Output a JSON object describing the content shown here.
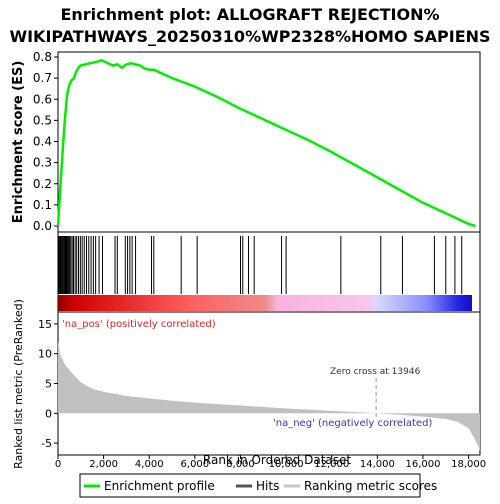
{
  "chart_data": {
    "type": "line",
    "title_line1": "Enrichment plot: ALLOGRAFT REJECTION%",
    "title_line2": "WIKIPATHWAYS_20250310%WP2328%HOMO SAPIENS",
    "es_panel": {
      "ylabel": "Enrichment score (ES)",
      "ylim": [
        0.0,
        0.8
      ],
      "yticks": [
        "0.0",
        "0.1",
        "0.2",
        "0.3",
        "0.4",
        "0.5",
        "0.6",
        "0.7",
        "0.8"
      ],
      "line_color": "#00ee00",
      "series": {
        "name": "Enrichment profile",
        "x": [
          0,
          100,
          200,
          300,
          400,
          500,
          600,
          700,
          800,
          900,
          1000,
          1200,
          1400,
          1600,
          1800,
          1900,
          2000,
          2200,
          2400,
          2600,
          2800,
          3000,
          3200,
          3400,
          3600,
          3800,
          4000,
          4200,
          5000,
          6000,
          7000,
          8000,
          8500,
          9000,
          10000,
          11000,
          12000,
          13000,
          14000,
          15000,
          16000,
          17000,
          17500,
          18000,
          18300
        ],
        "y": [
          0.0,
          0.18,
          0.35,
          0.5,
          0.62,
          0.67,
          0.69,
          0.7,
          0.73,
          0.75,
          0.76,
          0.765,
          0.77,
          0.775,
          0.78,
          0.785,
          0.78,
          0.77,
          0.76,
          0.765,
          0.75,
          0.765,
          0.77,
          0.765,
          0.76,
          0.745,
          0.74,
          0.74,
          0.7,
          0.66,
          0.61,
          0.555,
          0.53,
          0.505,
          0.455,
          0.405,
          0.35,
          0.29,
          0.23,
          0.17,
          0.11,
          0.06,
          0.035,
          0.01,
          0.0
        ]
      }
    },
    "hits_panel": {
      "positions": [
        30,
        70,
        110,
        150,
        190,
        230,
        270,
        310,
        350,
        390,
        430,
        470,
        510,
        560,
        620,
        680,
        750,
        820,
        900,
        980,
        1060,
        1150,
        1250,
        1350,
        1450,
        1550,
        1650,
        1800,
        1950,
        2500,
        2600,
        2950,
        3050,
        3150,
        3250,
        3400,
        4100,
        4200,
        5400,
        6100,
        8000,
        8100,
        8350,
        8600,
        9800,
        10000,
        12400,
        14150,
        15100,
        16500,
        17000,
        17400,
        17700
      ]
    },
    "ranked_panel": {
      "ylabel": "Ranked list metric (PreRanked)",
      "ylim": [
        -7,
        17
      ],
      "yticks": [
        "-5",
        "0",
        "5",
        "10",
        "15"
      ],
      "fill_color": "#c0c0c0",
      "metric_profile": {
        "x": [
          0,
          100,
          300,
          600,
          1000,
          1500,
          2000,
          3000,
          4000,
          5000,
          6000,
          8000,
          10000,
          12000,
          13946,
          15000,
          16000,
          17000,
          17500,
          18000,
          18300,
          18500
        ],
        "y": [
          12,
          9.8,
          8.2,
          6.8,
          5.2,
          4.1,
          3.6,
          2.9,
          2.5,
          2.1,
          1.8,
          1.3,
          0.8,
          0.4,
          0.0,
          -0.25,
          -0.55,
          -0.95,
          -1.4,
          -2.5,
          -4.5,
          -6.2
        ]
      },
      "pos_label": "'na_pos' (positively correlated)",
      "neg_label": "'na_neg' (negatively correlated)",
      "zero_cross_label": "Zero cross at 13946",
      "zero_cross": 13946
    },
    "xaxis": {
      "label": "Rank in Ordered Dataset",
      "xlim": [
        0,
        18500
      ],
      "ticks": [
        0,
        2000,
        4000,
        6000,
        8000,
        10000,
        12000,
        14000,
        16000,
        18000
      ],
      "tick_labels": [
        "0",
        "2,000",
        "4,000",
        "6,000",
        "8,000",
        "10,000",
        "12,000",
        "14,000",
        "16,000",
        "18,000"
      ]
    },
    "legend": {
      "placement": "bottom",
      "items": [
        {
          "label": "Enrichment profile",
          "color": "#00ee00"
        },
        {
          "label": "Hits",
          "color": "#555555"
        },
        {
          "label": "Ranking metric scores",
          "color": "#c0c0c0"
        }
      ]
    }
  }
}
